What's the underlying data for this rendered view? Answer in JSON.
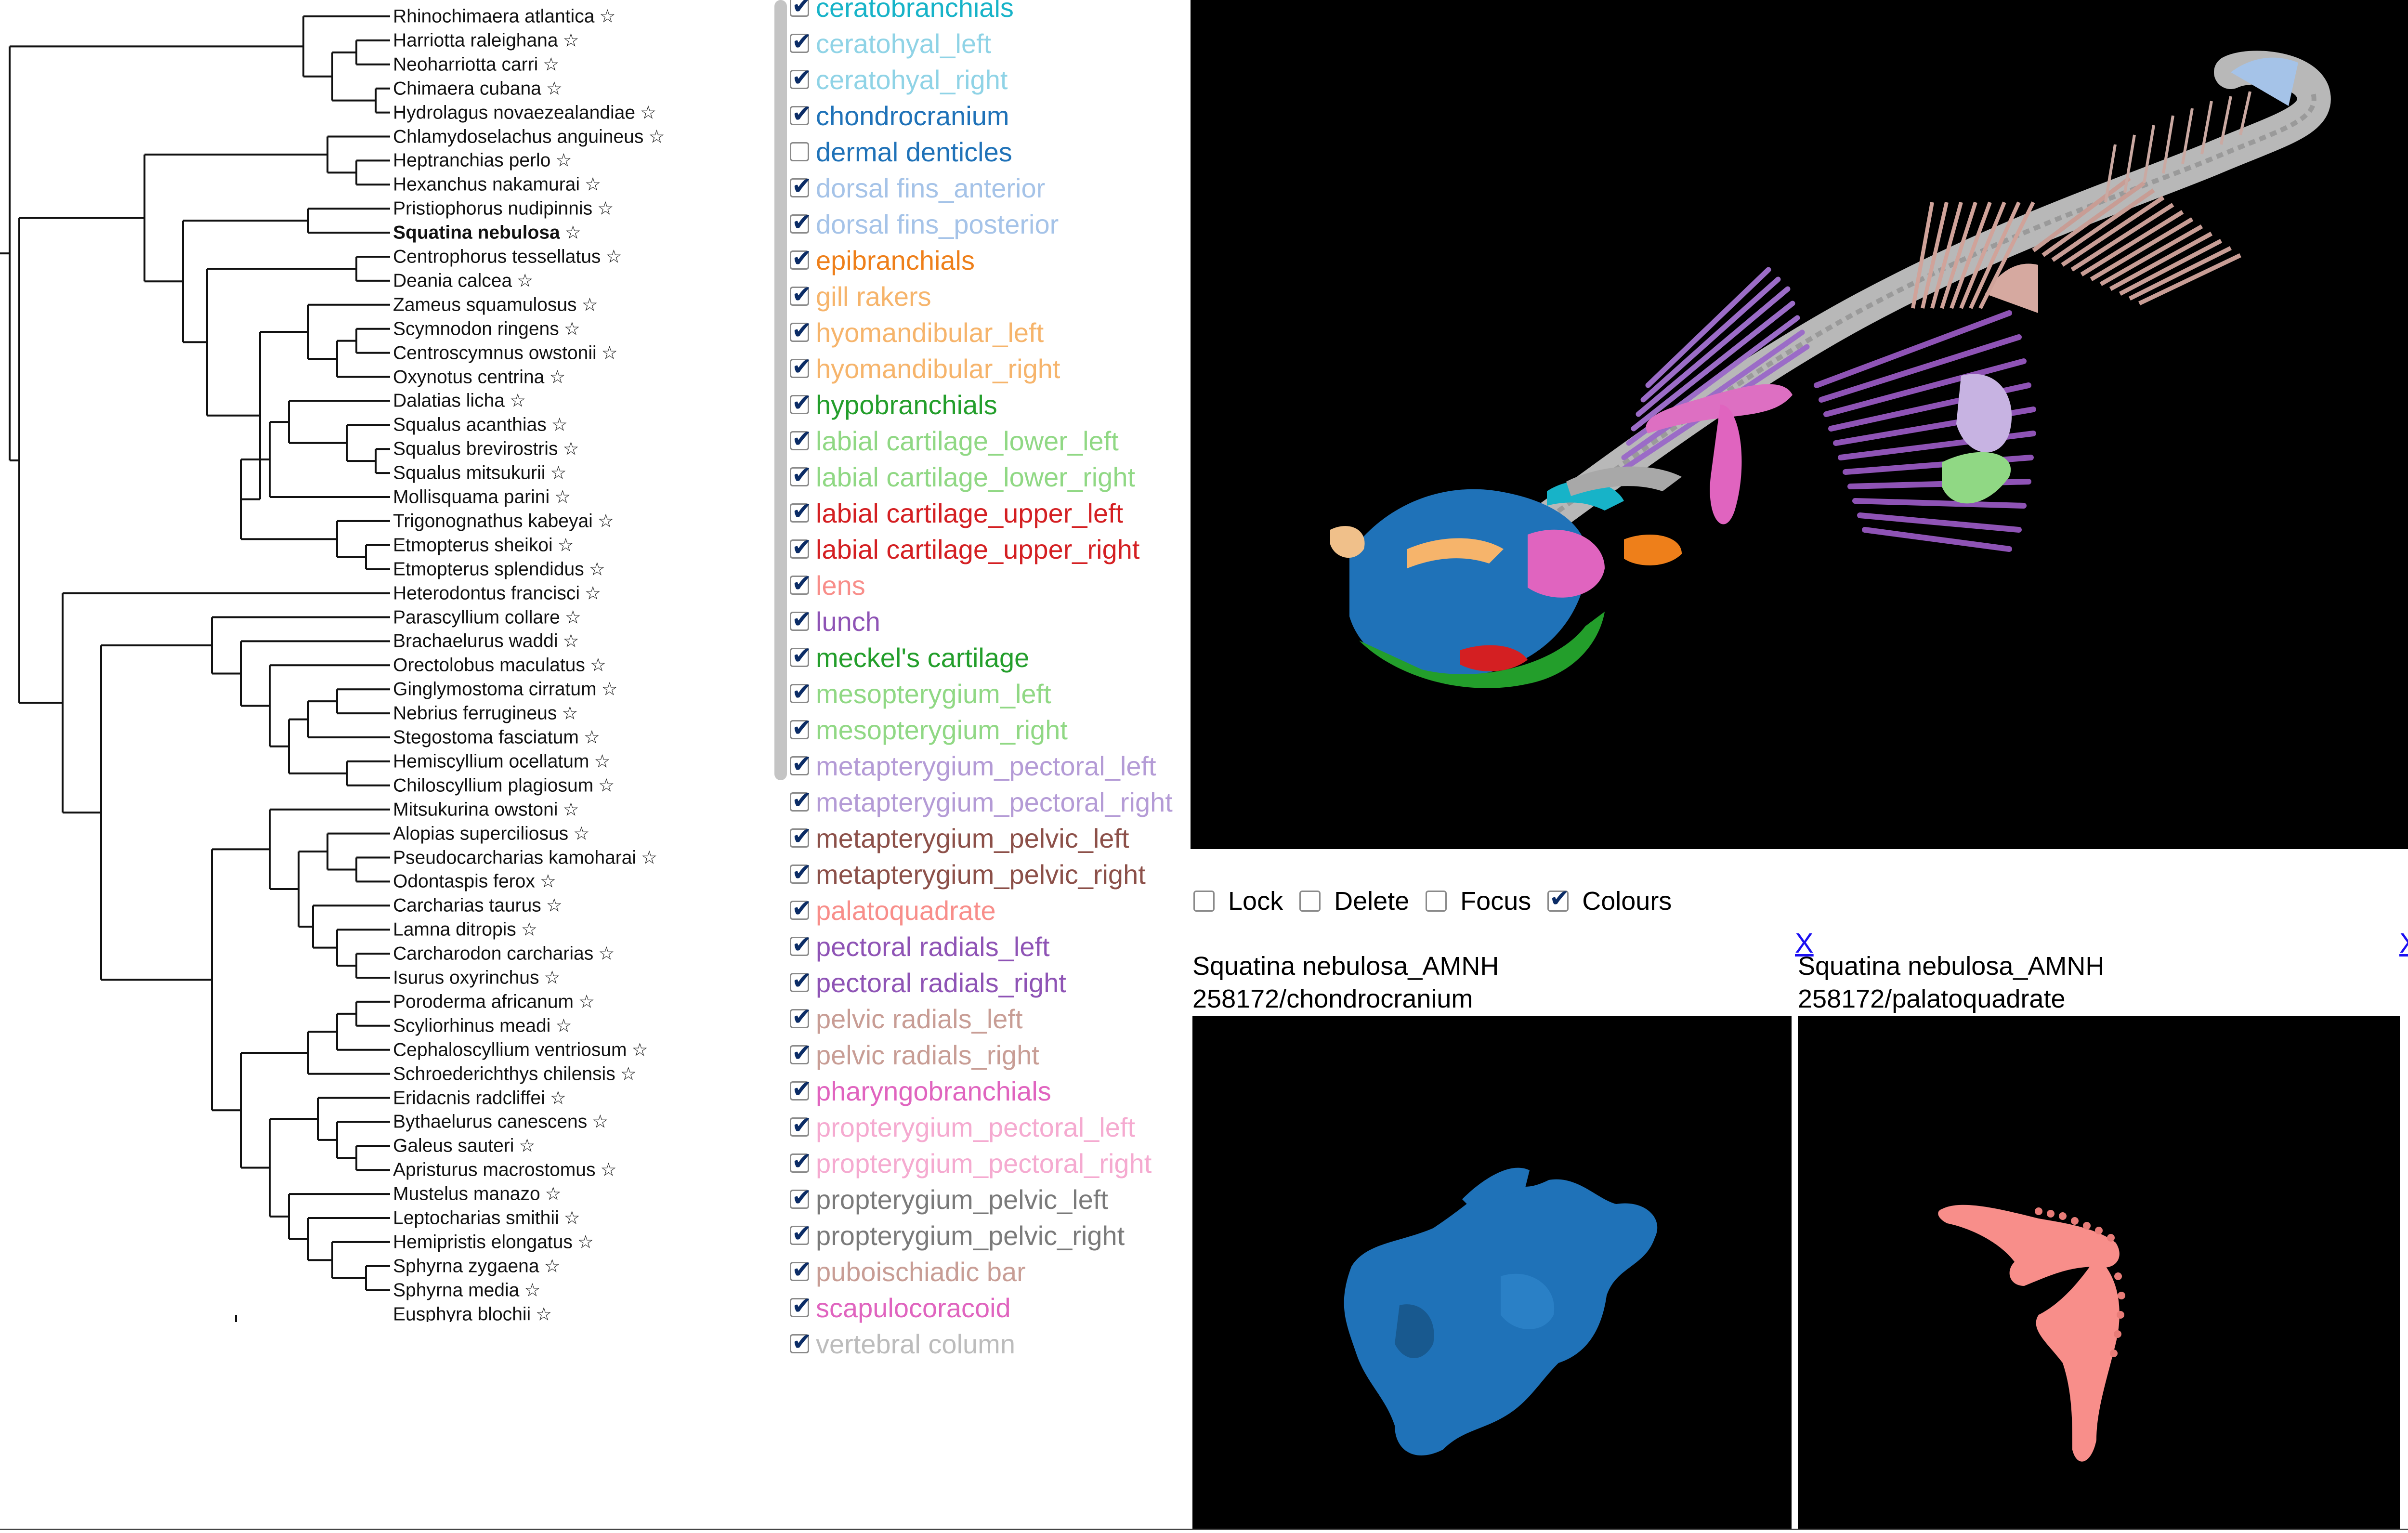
{
  "tree": {
    "taxa": [
      {
        "name": "Rhinochimaera atlantica",
        "star": "☆",
        "bold": false
      },
      {
        "name": "Harriotta raleighana",
        "star": "☆",
        "bold": false
      },
      {
        "name": "Neoharriotta carri",
        "star": "☆",
        "bold": false
      },
      {
        "name": "Chimaera cubana",
        "star": "☆",
        "bold": false
      },
      {
        "name": "Hydrolagus novaezealandiae",
        "star": "☆",
        "bold": false
      },
      {
        "name": "Chlamydoselachus anguineus",
        "star": "☆",
        "bold": false
      },
      {
        "name": "Heptranchias perlo",
        "star": "☆",
        "bold": false
      },
      {
        "name": "Hexanchus nakamurai",
        "star": "☆",
        "bold": false
      },
      {
        "name": "Pristiophorus nudipinnis",
        "star": "☆",
        "bold": false
      },
      {
        "name": "Squatina nebulosa",
        "star": "☆",
        "bold": true
      },
      {
        "name": "Centrophorus tessellatus",
        "star": "☆",
        "bold": false
      },
      {
        "name": "Deania calcea",
        "star": "☆",
        "bold": false
      },
      {
        "name": "Zameus squamulosus",
        "star": "☆",
        "bold": false
      },
      {
        "name": "Scymnodon ringens",
        "star": "☆",
        "bold": false
      },
      {
        "name": "Centroscymnus owstonii",
        "star": "☆",
        "bold": false
      },
      {
        "name": "Oxynotus centrina",
        "star": "☆",
        "bold": false
      },
      {
        "name": "Dalatias licha",
        "star": "☆",
        "bold": false
      },
      {
        "name": "Squalus acanthias",
        "star": "☆",
        "bold": false
      },
      {
        "name": "Squalus brevirostris",
        "star": "☆",
        "bold": false
      },
      {
        "name": "Squalus mitsukurii",
        "star": "☆",
        "bold": false
      },
      {
        "name": "Mollisquama parini",
        "star": "☆",
        "bold": false
      },
      {
        "name": "Trigonognathus kabeyai",
        "star": "☆",
        "bold": false
      },
      {
        "name": "Etmopterus sheikoi",
        "star": "☆",
        "bold": false
      },
      {
        "name": "Etmopterus splendidus",
        "star": "☆",
        "bold": false
      },
      {
        "name": "Heterodontus francisci",
        "star": "☆",
        "bold": false
      },
      {
        "name": "Parascyllium collare",
        "star": "☆",
        "bold": false
      },
      {
        "name": "Brachaelurus waddi",
        "star": "☆",
        "bold": false
      },
      {
        "name": "Orectolobus maculatus",
        "star": "☆",
        "bold": false
      },
      {
        "name": "Ginglymostoma cirratum",
        "star": "☆",
        "bold": false
      },
      {
        "name": "Nebrius ferrugineus",
        "star": "☆",
        "bold": false
      },
      {
        "name": "Stegostoma fasciatum",
        "star": "☆",
        "bold": false
      },
      {
        "name": "Hemiscyllium ocellatum",
        "star": "☆",
        "bold": false
      },
      {
        "name": "Chiloscyllium plagiosum",
        "star": "☆",
        "bold": false
      },
      {
        "name": "Mitsukurina owstoni",
        "star": "☆",
        "bold": false
      },
      {
        "name": "Alopias superciliosus",
        "star": "☆",
        "bold": false
      },
      {
        "name": "Pseudocarcharias kamoharai",
        "star": "☆",
        "bold": false
      },
      {
        "name": "Odontaspis ferox",
        "star": "☆",
        "bold": false
      },
      {
        "name": "Carcharias taurus",
        "star": "☆",
        "bold": false
      },
      {
        "name": "Lamna ditropis",
        "star": "☆",
        "bold": false
      },
      {
        "name": "Carcharodon carcharias",
        "star": "☆",
        "bold": false
      },
      {
        "name": "Isurus oxyrinchus",
        "star": "☆",
        "bold": false
      },
      {
        "name": "Poroderma africanum",
        "star": "☆",
        "bold": false
      },
      {
        "name": "Scyliorhinus meadi",
        "star": "☆",
        "bold": false
      },
      {
        "name": "Cephaloscyllium ventriosum",
        "star": "☆",
        "bold": false
      },
      {
        "name": "Schroederichthys chilensis",
        "star": "☆",
        "bold": false
      },
      {
        "name": "Eridacnis radcliffei",
        "star": "☆",
        "bold": false
      },
      {
        "name": "Bythaelurus canescens",
        "star": "☆",
        "bold": false
      },
      {
        "name": "Galeus sauteri",
        "star": "☆",
        "bold": false
      },
      {
        "name": "Apristurus macrostomus",
        "star": "☆",
        "bold": false
      },
      {
        "name": "Mustelus manazo",
        "star": "☆",
        "bold": false
      },
      {
        "name": "Leptocharias smithii",
        "star": "☆",
        "bold": false
      },
      {
        "name": "Hemipristis elongatus",
        "star": "☆",
        "bold": false
      },
      {
        "name": "Sphyrna zygaena",
        "star": "☆",
        "bold": false
      },
      {
        "name": "Sphyrna media",
        "star": "☆",
        "bold": false
      },
      {
        "name": "Eusphyra blochii",
        "star": "☆",
        "bold": false
      }
    ]
  },
  "parts": [
    {
      "label": "ceratobranchials",
      "color": "#17b3c8",
      "checked": true
    },
    {
      "label": "ceratohyal_left",
      "color": "#8fd3e6",
      "checked": true
    },
    {
      "label": "ceratohyal_right",
      "color": "#8fd3e6",
      "checked": true
    },
    {
      "label": "chondrocranium",
      "color": "#1f72b8",
      "checked": true
    },
    {
      "label": "dermal denticles",
      "color": "#1f72b8",
      "checked": false
    },
    {
      "label": "dorsal fins_anterior",
      "color": "#a5c3e8",
      "checked": true
    },
    {
      "label": "dorsal fins_posterior",
      "color": "#a5c3e8",
      "checked": true
    },
    {
      "label": "epibranchials",
      "color": "#ee7f1a",
      "checked": true
    },
    {
      "label": "gill rakers",
      "color": "#f6b46b",
      "checked": true
    },
    {
      "label": "hyomandibular_left",
      "color": "#f6b46b",
      "checked": true
    },
    {
      "label": "hyomandibular_right",
      "color": "#f6b46b",
      "checked": true
    },
    {
      "label": "hypobranchials",
      "color": "#239e2b",
      "checked": true
    },
    {
      "label": "labial cartilage_lower_left",
      "color": "#90d884",
      "checked": true
    },
    {
      "label": "labial cartilage_lower_right",
      "color": "#90d884",
      "checked": true
    },
    {
      "label": "labial cartilage_upper_left",
      "color": "#d41f22",
      "checked": true
    },
    {
      "label": "labial cartilage_upper_right",
      "color": "#d41f22",
      "checked": true
    },
    {
      "label": "lens",
      "color": "#f88e8a",
      "checked": true
    },
    {
      "label": "lunch",
      "color": "#8e53b5",
      "checked": true
    },
    {
      "label": "meckel's cartilage",
      "color": "#239e2b",
      "checked": true
    },
    {
      "label": "mesopterygium_left",
      "color": "#90d884",
      "checked": true
    },
    {
      "label": "mesopterygium_right",
      "color": "#90d884",
      "checked": true
    },
    {
      "label": "metapterygium_pectoral_left",
      "color": "#b49bd6",
      "checked": true
    },
    {
      "label": "metapterygium_pectoral_right",
      "color": "#b49bd6",
      "checked": true
    },
    {
      "label": "metapterygium_pelvic_left",
      "color": "#8c5049",
      "checked": true
    },
    {
      "label": "metapterygium_pelvic_right",
      "color": "#8c5049",
      "checked": true
    },
    {
      "label": "palatoquadrate",
      "color": "#f88e8a",
      "checked": true
    },
    {
      "label": "pectoral radials_left",
      "color": "#8e53b5",
      "checked": true
    },
    {
      "label": "pectoral radials_right",
      "color": "#8e53b5",
      "checked": true
    },
    {
      "label": "pelvic radials_left",
      "color": "#c89d95",
      "checked": true
    },
    {
      "label": "pelvic radials_right",
      "color": "#c89d95",
      "checked": true
    },
    {
      "label": "pharyngobranchials",
      "color": "#e064bf",
      "checked": true
    },
    {
      "label": "propterygium_pectoral_left",
      "color": "#f5aad0",
      "checked": true
    },
    {
      "label": "propterygium_pectoral_right",
      "color": "#f5aad0",
      "checked": true
    },
    {
      "label": "propterygium_pelvic_left",
      "color": "#7a7a7a",
      "checked": true
    },
    {
      "label": "propterygium_pelvic_right",
      "color": "#7a7a7a",
      "checked": true
    },
    {
      "label": "puboischiadic bar",
      "color": "#c89d95",
      "checked": true
    },
    {
      "label": "scapulocoracoid",
      "color": "#e064bf",
      "checked": true
    },
    {
      "label": "vertebral column",
      "color": "#bcbcbc",
      "checked": true
    }
  ],
  "controls": {
    "lock": {
      "label": "Lock",
      "checked": false
    },
    "delete": {
      "label": "Delete",
      "checked": false
    },
    "focus": {
      "label": "Focus",
      "checked": false
    },
    "colours": {
      "label": "Colours",
      "checked": true
    }
  },
  "viewers": [
    {
      "line1": "Squatina nebulosa_AMNH",
      "line2": "258172/chondrocranium",
      "close": "X",
      "color": "#1f72b8"
    },
    {
      "line1": "Squatina nebulosa_AMNH",
      "line2": "258172/palatoquadrate",
      "close": "X",
      "color": "#f88e8a"
    }
  ]
}
